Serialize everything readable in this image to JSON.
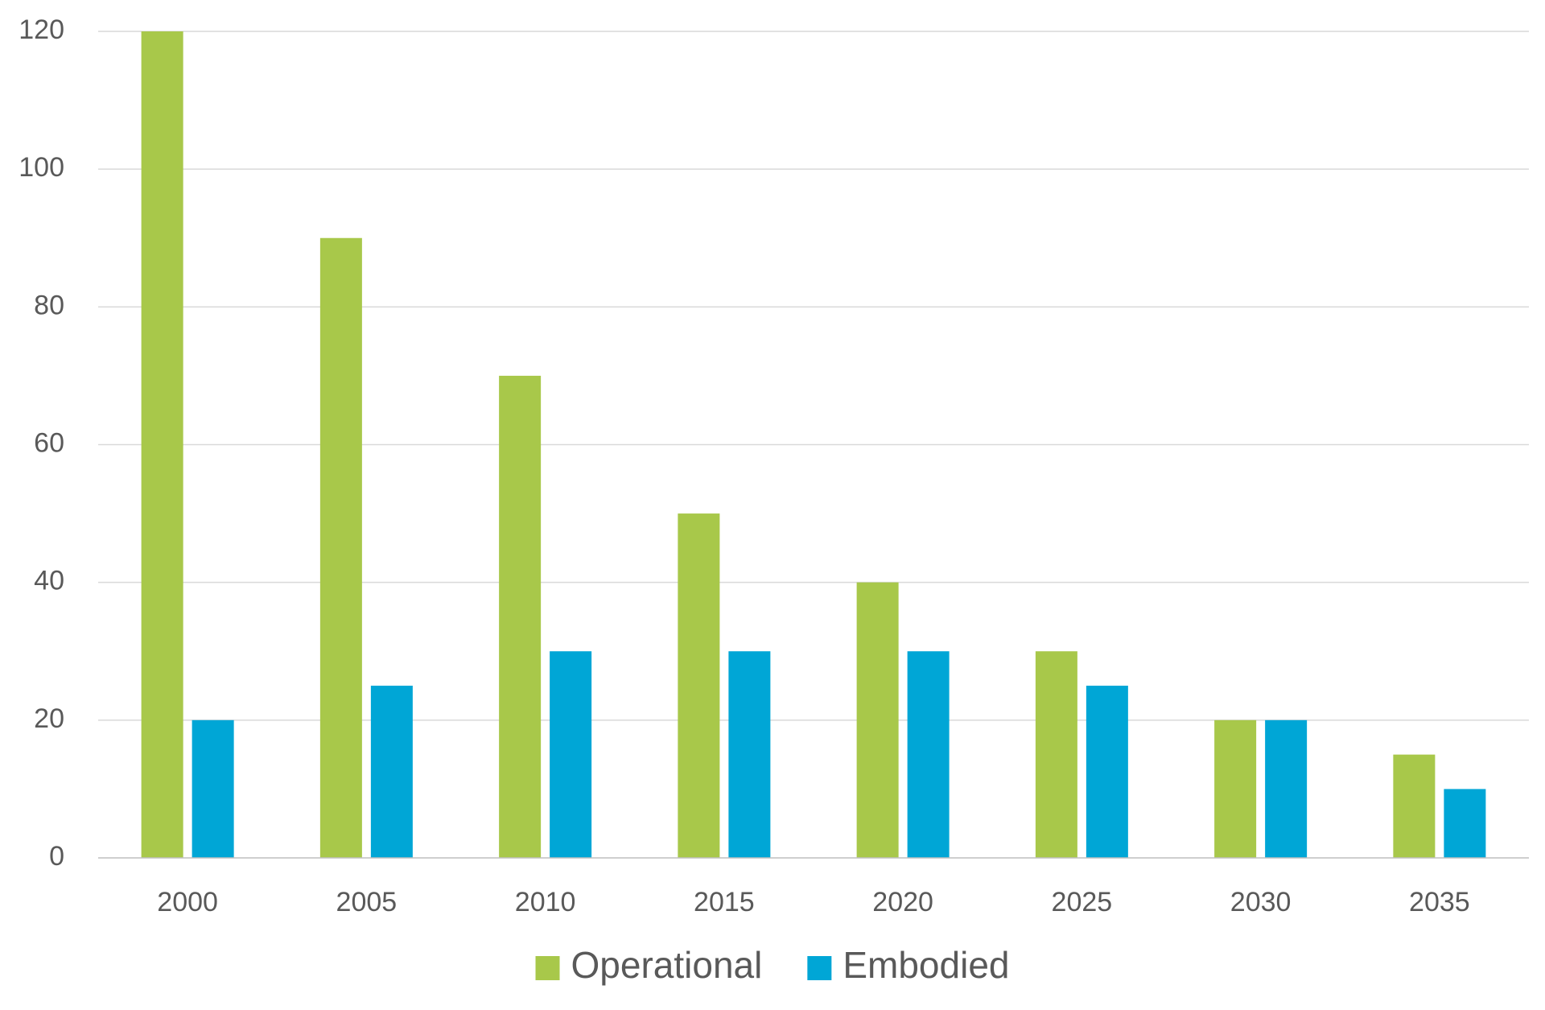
{
  "chart_data": {
    "type": "bar",
    "categories": [
      "2000",
      "2005",
      "2010",
      "2015",
      "2020",
      "2025",
      "2030",
      "2035"
    ],
    "series": [
      {
        "name": "Operational",
        "color": "#a8c84a",
        "values": [
          120,
          90,
          70,
          50,
          40,
          30,
          20,
          15
        ]
      },
      {
        "name": "Embodied",
        "color": "#00a6d6",
        "values": [
          20,
          25,
          30,
          30,
          30,
          25,
          20,
          10
        ]
      }
    ],
    "ylim": [
      0,
      120
    ],
    "yticks": [
      0,
      20,
      40,
      60,
      80,
      100,
      120
    ],
    "grid": true,
    "legend": "bottom-center"
  }
}
